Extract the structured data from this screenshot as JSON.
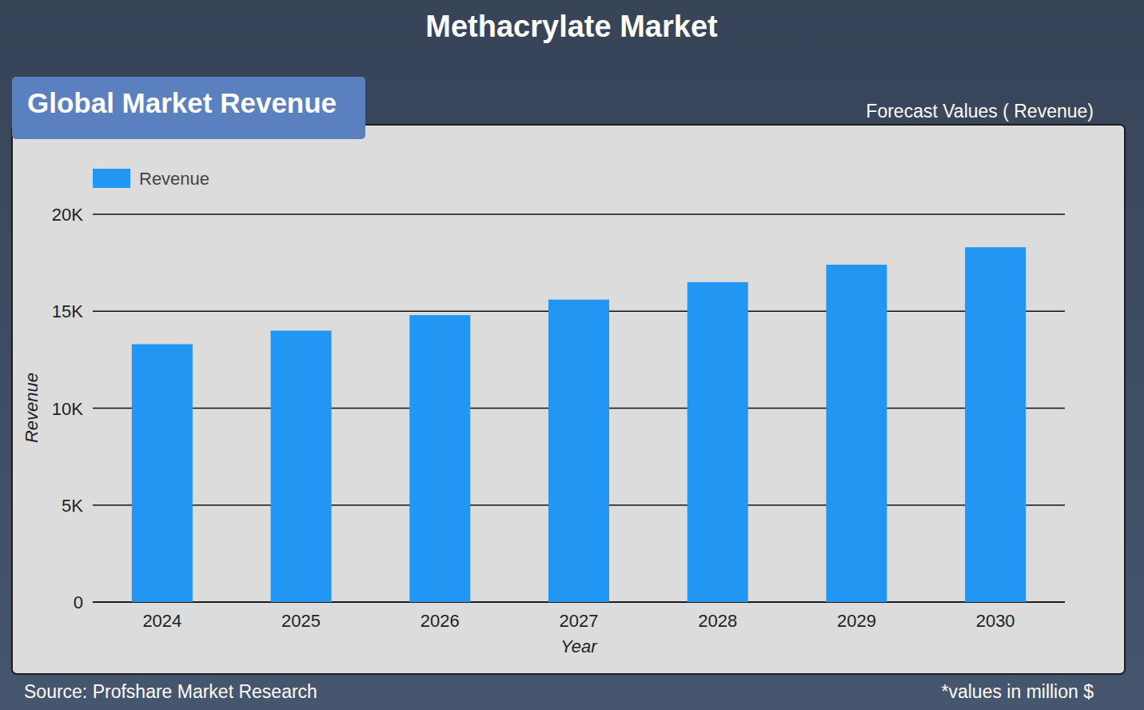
{
  "chart_data": {
    "type": "bar",
    "title": "Methacrylate Market",
    "subtitle": "Global Market Revenue",
    "annotations": [
      "Forecast Values ( Revenue)",
      "Source: Profshare Market Research",
      "*values in million $"
    ],
    "x_label": "Year",
    "y_label": "Revenue",
    "categories": [
      "2024",
      "2025",
      "2026",
      "2027",
      "2028",
      "2029",
      "2030"
    ],
    "series": [
      {
        "name": "Revenue",
        "color": "#2196f3",
        "values": [
          13300,
          14000,
          14800,
          15600,
          16500,
          17400,
          18300
        ]
      }
    ],
    "ylim": [
      0,
      20000
    ],
    "yticks": [
      0,
      {
        "value": 5000,
        "label": "5K"
      },
      {
        "value": 10000,
        "label": "10K"
      },
      {
        "value": 15000,
        "label": "15K"
      },
      {
        "value": 20000,
        "label": "20K"
      }
    ],
    "grid": true,
    "legend": "top-left"
  }
}
